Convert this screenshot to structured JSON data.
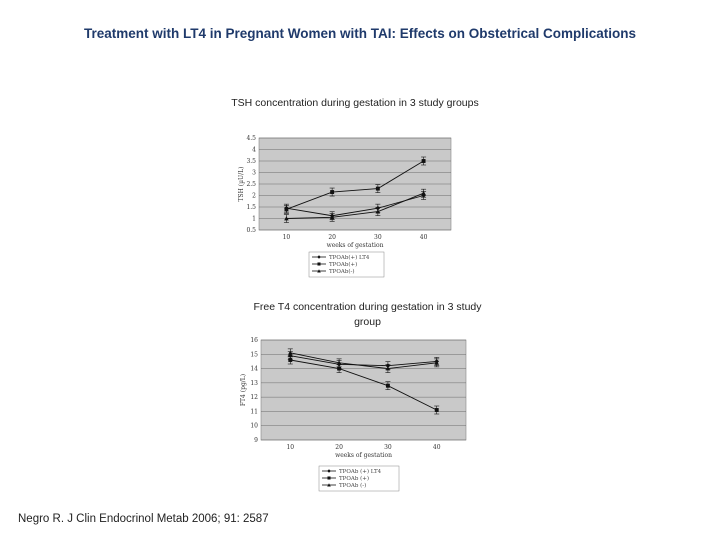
{
  "slide": {
    "title": "Treatment with LT4 in Pregnant Women with TAI: Effects on Obstetrical Complications",
    "citation": "Negro R. J Clin Endocrinol Metab 2006; 91: 2587"
  },
  "chart_data": [
    {
      "type": "line",
      "title": "TSH concentration during gestation in 3 study groups",
      "xlabel": "weeks of gestation",
      "ylabel": "TSH (µU/L)",
      "x": [
        10,
        20,
        30,
        40
      ],
      "ylim": [
        0.5,
        4.5
      ],
      "yticks": [
        0.5,
        1,
        1.5,
        2,
        2.5,
        3,
        3.5,
        4,
        4.5
      ],
      "grid": true,
      "legend_position": "bottom",
      "series": [
        {
          "name": "TPOAb(+) LT4",
          "marker": "diamond",
          "values": [
            1.45,
            1.12,
            1.45,
            2.0
          ]
        },
        {
          "name": "TPOAb(+)",
          "marker": "square",
          "values": [
            1.4,
            2.15,
            2.3,
            3.5
          ]
        },
        {
          "name": "TPOAb(-)",
          "marker": "triangle",
          "values": [
            1.0,
            1.05,
            1.3,
            2.1
          ]
        }
      ]
    },
    {
      "type": "line",
      "title": "Free T4 concentration during gestation in 3 study group",
      "xlabel": "weeks of gestation",
      "ylabel": "FT4 (pg/L)",
      "x": [
        10,
        20,
        30,
        40
      ],
      "ylim": [
        9,
        16
      ],
      "yticks": [
        9,
        10,
        11,
        12,
        13,
        14,
        15,
        16
      ],
      "grid": true,
      "legend_position": "bottom",
      "series": [
        {
          "name": "TPOAb (+) LT4",
          "marker": "diamond",
          "values": [
            14.9,
            14.3,
            14.2,
            14.5
          ]
        },
        {
          "name": "TPOAb (+)",
          "marker": "square",
          "values": [
            14.6,
            14.0,
            12.8,
            11.1
          ]
        },
        {
          "name": "TPOAb (-)",
          "marker": "triangle",
          "values": [
            15.1,
            14.4,
            14.0,
            14.4
          ]
        }
      ]
    }
  ]
}
